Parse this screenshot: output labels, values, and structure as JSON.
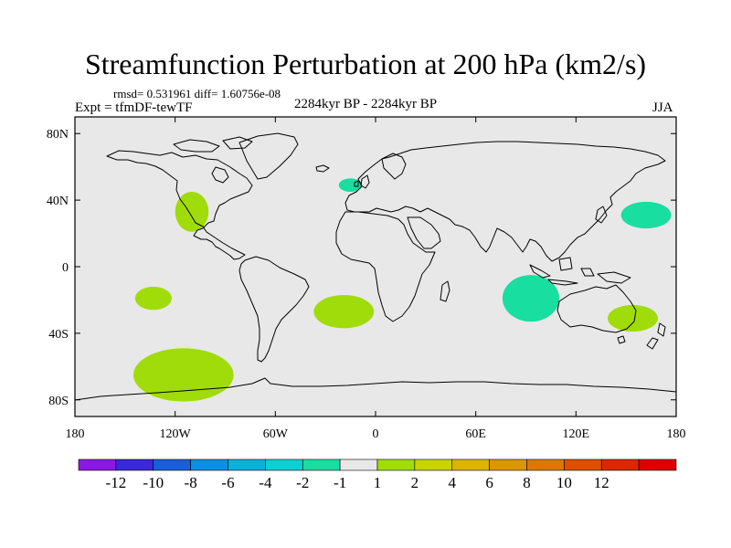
{
  "chart_data": {
    "type": "heatmap",
    "title": "Streamfunction Perturbation at 200 hPa (km2/s)",
    "stats_text": "rmsd= 0.531961 diff= 1.60756e-08",
    "experiment": "Expt = tfmDF-tewTF",
    "period": "2284kyr BP - 2284kyr BP",
    "season": "JJA",
    "x_range": [
      -180,
      180
    ],
    "y_range": [
      -90,
      90
    ],
    "x_ticks": [
      {
        "value": -180,
        "label": "180"
      },
      {
        "value": -120,
        "label": "120W"
      },
      {
        "value": -60,
        "label": "60W"
      },
      {
        "value": 0,
        "label": "0"
      },
      {
        "value": 60,
        "label": "60E"
      },
      {
        "value": 120,
        "label": "120E"
      },
      {
        "value": 180,
        "label": "180"
      }
    ],
    "y_ticks": [
      {
        "value": 80,
        "label": "80N"
      },
      {
        "value": 40,
        "label": "40N"
      },
      {
        "value": 0,
        "label": "0"
      },
      {
        "value": -40,
        "label": "40S"
      },
      {
        "value": -80,
        "label": "80S"
      }
    ],
    "colorbar": {
      "colors": [
        "#8b1ae0",
        "#3b28d8",
        "#1a5ed8",
        "#0c8fe0",
        "#0cb0d8",
        "#10cfd2",
        "#18dea0",
        "#e8e8e8",
        "#a0dc0a",
        "#c8d400",
        "#dcb400",
        "#dc9600",
        "#dc7800",
        "#dc5000",
        "#dc2800",
        "#dc0000"
      ],
      "labels": [
        "-12",
        "-10",
        "-8",
        "-6",
        "-4",
        "-2",
        "-1",
        "1",
        "2",
        "4",
        "6",
        "8",
        "10",
        "12"
      ]
    },
    "anomalies": [
      {
        "name": "north-america",
        "lon": -110,
        "lat": 33,
        "rlon": 10,
        "rlat": 12,
        "color": "#a0dc0a"
      },
      {
        "name": "north-atlantic",
        "lon": -15,
        "lat": 49,
        "rlon": 7,
        "rlat": 4,
        "color": "#18dea0"
      },
      {
        "name": "north-pacific-west",
        "lon": 162,
        "lat": 31,
        "rlon": 15,
        "rlat": 8,
        "color": "#18dea0"
      },
      {
        "name": "south-pacific-east",
        "lon": -133,
        "lat": -19,
        "rlon": 11,
        "rlat": 7,
        "color": "#a0dc0a"
      },
      {
        "name": "south-atlantic",
        "lon": -19,
        "lat": -27,
        "rlon": 18,
        "rlat": 10,
        "color": "#a0dc0a"
      },
      {
        "name": "indian-ocean",
        "lon": 93,
        "lat": -19,
        "rlon": 17,
        "rlat": 14,
        "color": "#18dea0"
      },
      {
        "name": "australia",
        "lon": 154,
        "lat": -31,
        "rlon": 15,
        "rlat": 8,
        "color": "#a0dc0a"
      },
      {
        "name": "southern-ocean-pacific",
        "lon": -115,
        "lat": -65,
        "rlon": 30,
        "rlat": 16,
        "color": "#a0dc0a"
      }
    ]
  }
}
